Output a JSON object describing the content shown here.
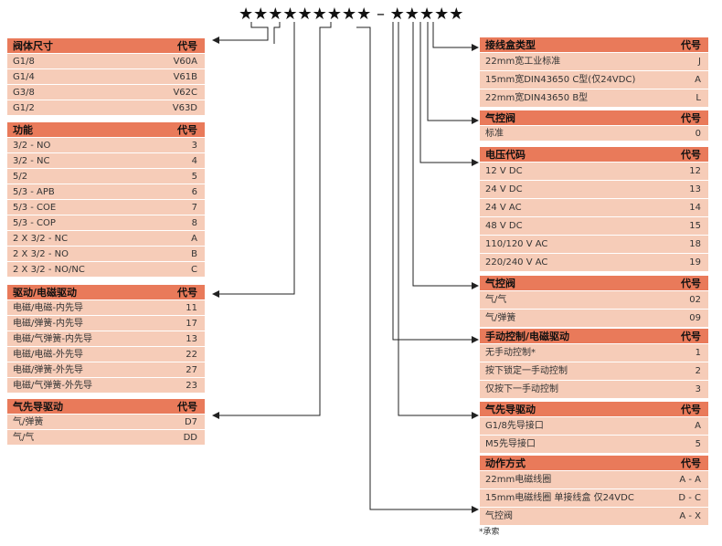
{
  "code_pattern": "★★★★★★★★★ – ★★★★★",
  "left_tables": [
    {
      "header": "阀体尺寸",
      "code_header": "代号",
      "rows": [
        [
          "G1/8",
          "V60A"
        ],
        [
          "G1/4",
          "V61B"
        ],
        [
          "G3/8",
          "V62C"
        ],
        [
          "G1/2",
          "V63D"
        ]
      ]
    },
    {
      "header": "功能",
      "code_header": "代号",
      "rows": [
        [
          "3/2 - NO",
          "3"
        ],
        [
          "3/2 - NC",
          "4"
        ],
        [
          "5/2",
          "5"
        ],
        [
          "5/3 - APB",
          "6"
        ],
        [
          "5/3 - COE",
          "7"
        ],
        [
          "5/3 - COP",
          "8"
        ],
        [
          "2 X 3/2 - NC",
          "A"
        ],
        [
          "2 X 3/2 - NO",
          "B"
        ],
        [
          "2 X 3/2 - NO/NC",
          "C"
        ]
      ]
    },
    {
      "header": "驱动/电磁驱动",
      "code_header": "代号",
      "rows": [
        [
          "电磁/电磁-内先导",
          "11"
        ],
        [
          "电磁/弹簧-内先导",
          "17"
        ],
        [
          "电磁/气弹簧-内先导",
          "13"
        ],
        [
          "电磁/电磁-外先导",
          "22"
        ],
        [
          "电磁/弹簧-外先导",
          "27"
        ],
        [
          "电磁/气弹簧-外先导",
          "23"
        ]
      ]
    },
    {
      "header": "气先导驱动",
      "code_header": "代号",
      "rows": [
        [
          "气/弹簧",
          "D7"
        ],
        [
          "气/气",
          "DD"
        ]
      ]
    }
  ],
  "right_tables": [
    {
      "header": "接线盒类型",
      "code_header": "代号",
      "rows": [
        [
          "22mm宽工业标准",
          "J"
        ],
        [
          "15mm宽DIN43650 C型(仅24VDC)",
          "A"
        ],
        [
          "22mm宽DIN43650 B型",
          "L"
        ]
      ]
    },
    {
      "header": "气控阀",
      "code_header": "代号",
      "rows": [
        [
          "标准",
          "0"
        ]
      ]
    },
    {
      "header": "电压代码",
      "code_header": "代号",
      "rows": [
        [
          "12 V DC",
          "12"
        ],
        [
          "24 V DC",
          "13"
        ],
        [
          "24 V AC",
          "14"
        ],
        [
          "48 V DC",
          "15"
        ],
        [
          "110/120 V AC",
          "18"
        ],
        [
          "220/240 V AC",
          "19"
        ]
      ]
    },
    {
      "header": "气控阀",
      "code_header": "代号",
      "rows": [
        [
          "气/气",
          "02"
        ],
        [
          "气/弹簧",
          "09"
        ]
      ]
    },
    {
      "header": "手动控制/电磁驱动",
      "code_header": "代号",
      "rows": [
        [
          "无手动控制*",
          "1"
        ],
        [
          "按下锁定一手动控制",
          "2"
        ],
        [
          "仅按下一手动控制",
          "3"
        ]
      ]
    },
    {
      "header": "气先导驱动",
      "code_header": "代号",
      "rows": [
        [
          "G1/8先导接口",
          "A"
        ],
        [
          "M5先导接口",
          "5"
        ]
      ]
    },
    {
      "header": "动作方式",
      "code_header": "代号",
      "rows": [
        [
          "22mm电磁线圈",
          "A - A"
        ],
        [
          "15mm电磁线圈 单接线盒 仅24VDC",
          "D - C"
        ],
        [
          "气控阀",
          "A - X"
        ]
      ]
    }
  ],
  "footnote": "*承索"
}
